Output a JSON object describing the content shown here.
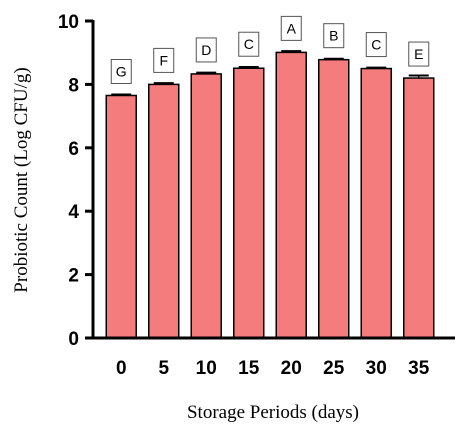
{
  "chart_data": {
    "type": "bar",
    "categories": [
      "0",
      "5",
      "10",
      "15",
      "20",
      "25",
      "30",
      "35"
    ],
    "values": [
      7.65,
      8.0,
      8.33,
      8.51,
      9.01,
      8.78,
      8.5,
      8.2
    ],
    "errors": [
      0.03,
      0.04,
      0.04,
      0.04,
      0.04,
      0.03,
      0.03,
      0.08
    ],
    "letters": [
      "G",
      "F",
      "D",
      "C",
      "A",
      "B",
      "C",
      "E"
    ],
    "xlabel": "Storage Periods (days)",
    "ylabel": "Probiotic Count (Log CFU/g)",
    "ylim": [
      0,
      10
    ],
    "yticks": [
      "0",
      "2",
      "4",
      "6",
      "8",
      "10"
    ],
    "bar_color": "#f47c7c",
    "edge_color": "#000000",
    "grid": false,
    "legend": "none"
  }
}
